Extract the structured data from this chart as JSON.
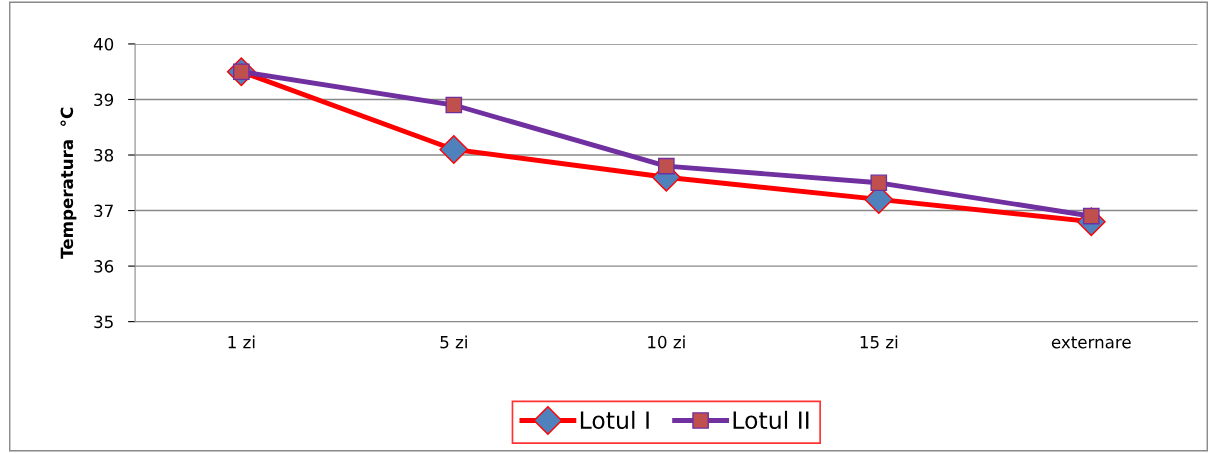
{
  "chart_data": {
    "type": "line",
    "ylabel": "Temperatura  °C",
    "categories": [
      "1 zi",
      "5 zi",
      "10 zi",
      "15 zi",
      "externare"
    ],
    "series": [
      {
        "name": "Lotul I",
        "color": "#ff0000",
        "marker": "diamond",
        "values": [
          39.5,
          38.1,
          37.6,
          37.2,
          36.8
        ]
      },
      {
        "name": "Lotul II",
        "color": "#7030a0",
        "marker": "square",
        "values": [
          39.5,
          38.9,
          37.8,
          37.5,
          36.9
        ]
      }
    ],
    "ylim": [
      35,
      40
    ],
    "yticks": [
      35,
      36,
      37,
      38,
      39,
      40
    ],
    "grid": "y",
    "legend": "bottom"
  }
}
